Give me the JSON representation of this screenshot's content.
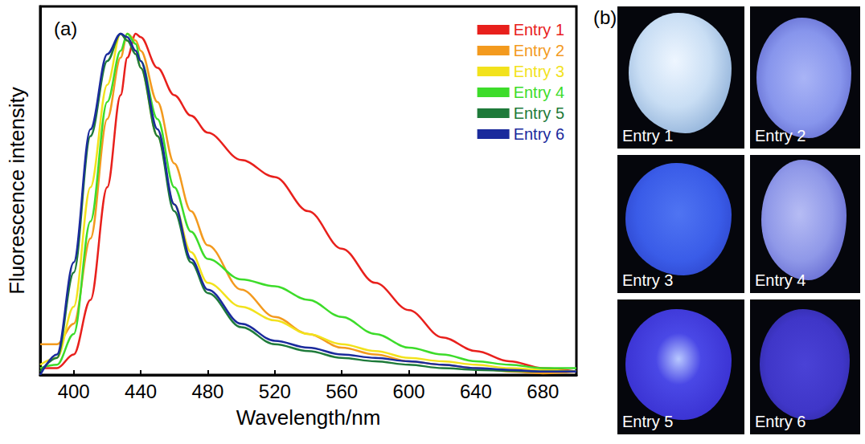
{
  "chart_data": {
    "type": "line",
    "title": "(a)",
    "x_label": "Wavelength/nm",
    "y_label": "Fluorescence intensity",
    "x": [
      380,
      390,
      400,
      410,
      420,
      428,
      432,
      437,
      440,
      450,
      460,
      470,
      480,
      500,
      520,
      540,
      560,
      580,
      600,
      620,
      640,
      660,
      680,
      700
    ],
    "series": [
      {
        "name": "Entry 1",
        "color": "#e8201c",
        "values": [
          0.02,
          0.02,
          0.06,
          0.22,
          0.55,
          0.82,
          0.93,
          1.0,
          0.99,
          0.9,
          0.82,
          0.76,
          0.71,
          0.63,
          0.58,
          0.48,
          0.37,
          0.27,
          0.19,
          0.11,
          0.07,
          0.04,
          0.02,
          0.01
        ]
      },
      {
        "name": "Entry 2",
        "color": "#f39a1e",
        "values": [
          0.09,
          0.09,
          0.15,
          0.4,
          0.75,
          0.93,
          1.0,
          0.98,
          0.95,
          0.8,
          0.62,
          0.48,
          0.38,
          0.25,
          0.17,
          0.12,
          0.08,
          0.06,
          0.04,
          0.03,
          0.02,
          0.01,
          0.005,
          0.01
        ]
      },
      {
        "name": "Entry 3",
        "color": "#f2e21c",
        "values": [
          0.03,
          0.05,
          0.2,
          0.55,
          0.85,
          1.0,
          0.98,
          0.95,
          0.9,
          0.7,
          0.5,
          0.36,
          0.27,
          0.2,
          0.16,
          0.12,
          0.09,
          0.07,
          0.05,
          0.04,
          0.03,
          0.02,
          0.015,
          0.01
        ]
      },
      {
        "name": "Entry 4",
        "color": "#3ddc2a",
        "values": [
          0.02,
          0.03,
          0.12,
          0.45,
          0.8,
          0.95,
          1.0,
          0.97,
          0.92,
          0.75,
          0.55,
          0.42,
          0.34,
          0.28,
          0.26,
          0.22,
          0.17,
          0.12,
          0.08,
          0.06,
          0.04,
          0.03,
          0.02,
          0.02
        ]
      },
      {
        "name": "Entry 5",
        "color": "#1e7a3a",
        "values": [
          0.01,
          0.05,
          0.3,
          0.7,
          0.92,
          1.0,
          0.98,
          0.94,
          0.9,
          0.7,
          0.48,
          0.33,
          0.24,
          0.14,
          0.09,
          0.07,
          0.05,
          0.04,
          0.03,
          0.02,
          0.015,
          0.012,
          0.01,
          0.01
        ]
      },
      {
        "name": "Entry 6",
        "color": "#1a2a9c",
        "values": [
          0.0,
          0.06,
          0.33,
          0.72,
          0.94,
          1.0,
          0.99,
          0.95,
          0.92,
          0.72,
          0.5,
          0.34,
          0.25,
          0.15,
          0.1,
          0.08,
          0.06,
          0.05,
          0.04,
          0.03,
          0.02,
          0.015,
          0.01,
          0.01
        ]
      }
    ],
    "xlim": [
      380,
      700
    ],
    "xticks": [
      400,
      440,
      480,
      520,
      560,
      600,
      640,
      680
    ],
    "ylim": [
      0,
      1.08
    ],
    "yticks": [],
    "tick_labels": "x",
    "grid": false,
    "legend": "upper right"
  },
  "photos": {
    "label": "(b)",
    "captions": [
      "Entry 1",
      "Entry 2",
      "Entry 3",
      "Entry 4",
      "Entry 5",
      "Entry 6"
    ]
  }
}
